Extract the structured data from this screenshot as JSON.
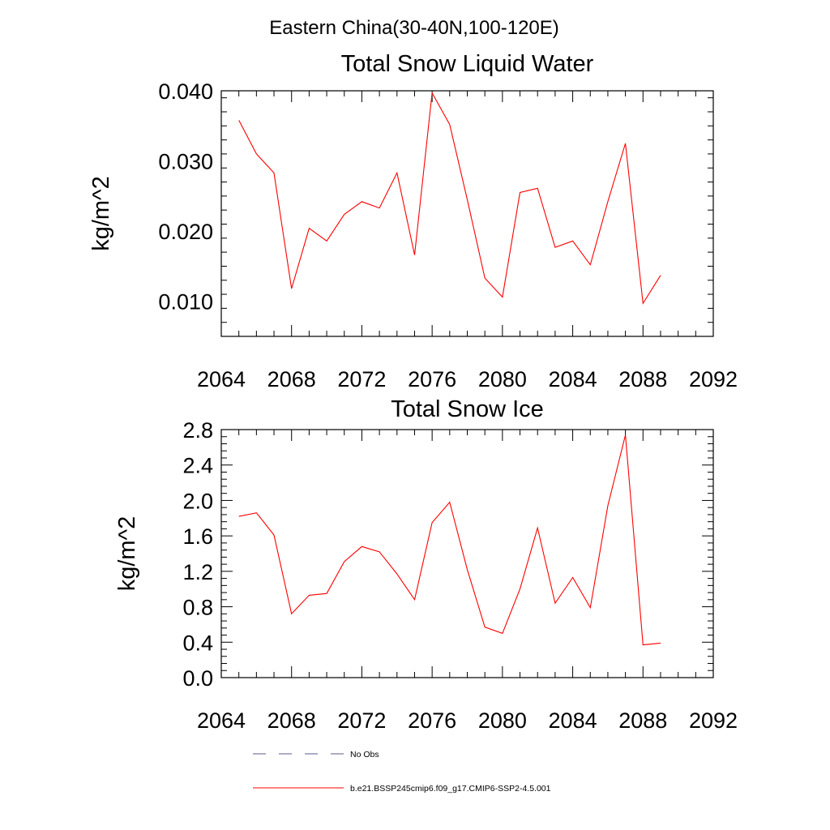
{
  "figure": {
    "title": "Eastern China(30-40N,100-120E)"
  },
  "chart_data": [
    {
      "type": "line",
      "title": "Total Snow Liquid Water",
      "xlabel": "",
      "ylabel": "kg/m^2",
      "xlim": [
        2064,
        2092
      ],
      "ylim": [
        0.005,
        0.04
      ],
      "x_ticks": [
        "2064",
        "2068",
        "2072",
        "2076",
        "2080",
        "2084",
        "2088",
        "2092"
      ],
      "y_ticks": [
        "0.010",
        "0.020",
        "0.030",
        "0.040"
      ],
      "grid": false,
      "series": [
        {
          "name": "b.e21.BSSP245cmip6.f09_g17.CMIP6-SSP2-4.5.001",
          "color": "#ff0000",
          "x": [
            2065,
            2066,
            2067,
            2068,
            2069,
            2070,
            2071,
            2072,
            2073,
            2074,
            2075,
            2076,
            2077,
            2078,
            2079,
            2080,
            2081,
            2082,
            2083,
            2084,
            2085,
            2086,
            2087,
            2088,
            2089
          ],
          "values": [
            0.0358,
            0.031,
            0.0283,
            0.0118,
            0.0204,
            0.0186,
            0.0224,
            0.0242,
            0.0233,
            0.0283,
            0.0166,
            0.0397,
            0.0352,
            0.0245,
            0.0133,
            0.0106,
            0.0255,
            0.0261,
            0.0177,
            0.0186,
            0.0152,
            0.0242,
            0.0325,
            0.0097,
            0.0137
          ]
        }
      ]
    },
    {
      "type": "line",
      "title": "Total Snow Ice",
      "xlabel": "",
      "ylabel": "kg/m^2",
      "xlim": [
        2064,
        2092
      ],
      "ylim": [
        0.0,
        2.8
      ],
      "x_ticks": [
        "2064",
        "2068",
        "2072",
        "2076",
        "2080",
        "2084",
        "2088",
        "2092"
      ],
      "y_ticks": [
        "0.0",
        "0.4",
        "0.8",
        "1.2",
        "1.6",
        "2.0",
        "2.4",
        "2.8"
      ],
      "grid": false,
      "series": [
        {
          "name": "b.e21.BSSP245cmip6.f09_g17.CMIP6-SSP2-4.5.001",
          "color": "#ff0000",
          "x": [
            2065,
            2066,
            2067,
            2068,
            2069,
            2070,
            2071,
            2072,
            2073,
            2074,
            2075,
            2076,
            2077,
            2078,
            2079,
            2080,
            2081,
            2082,
            2083,
            2084,
            2085,
            2086,
            2087,
            2088,
            2089
          ],
          "values": [
            1.82,
            1.86,
            1.61,
            0.72,
            0.93,
            0.95,
            1.31,
            1.48,
            1.42,
            1.17,
            0.88,
            1.75,
            1.98,
            1.22,
            0.57,
            0.5,
            1.0,
            1.69,
            0.84,
            1.13,
            0.79,
            1.94,
            2.74,
            0.37,
            0.39
          ]
        }
      ]
    }
  ],
  "legend": {
    "placement": "bottom",
    "items": [
      {
        "label": "No Obs",
        "color": "#5a5a8c",
        "style": "dashed"
      },
      {
        "label": "b.e21.BSSP245cmip6.f09_g17.CMIP6-SSP2-4.5.001",
        "color": "#ff0000",
        "style": "solid"
      }
    ]
  }
}
